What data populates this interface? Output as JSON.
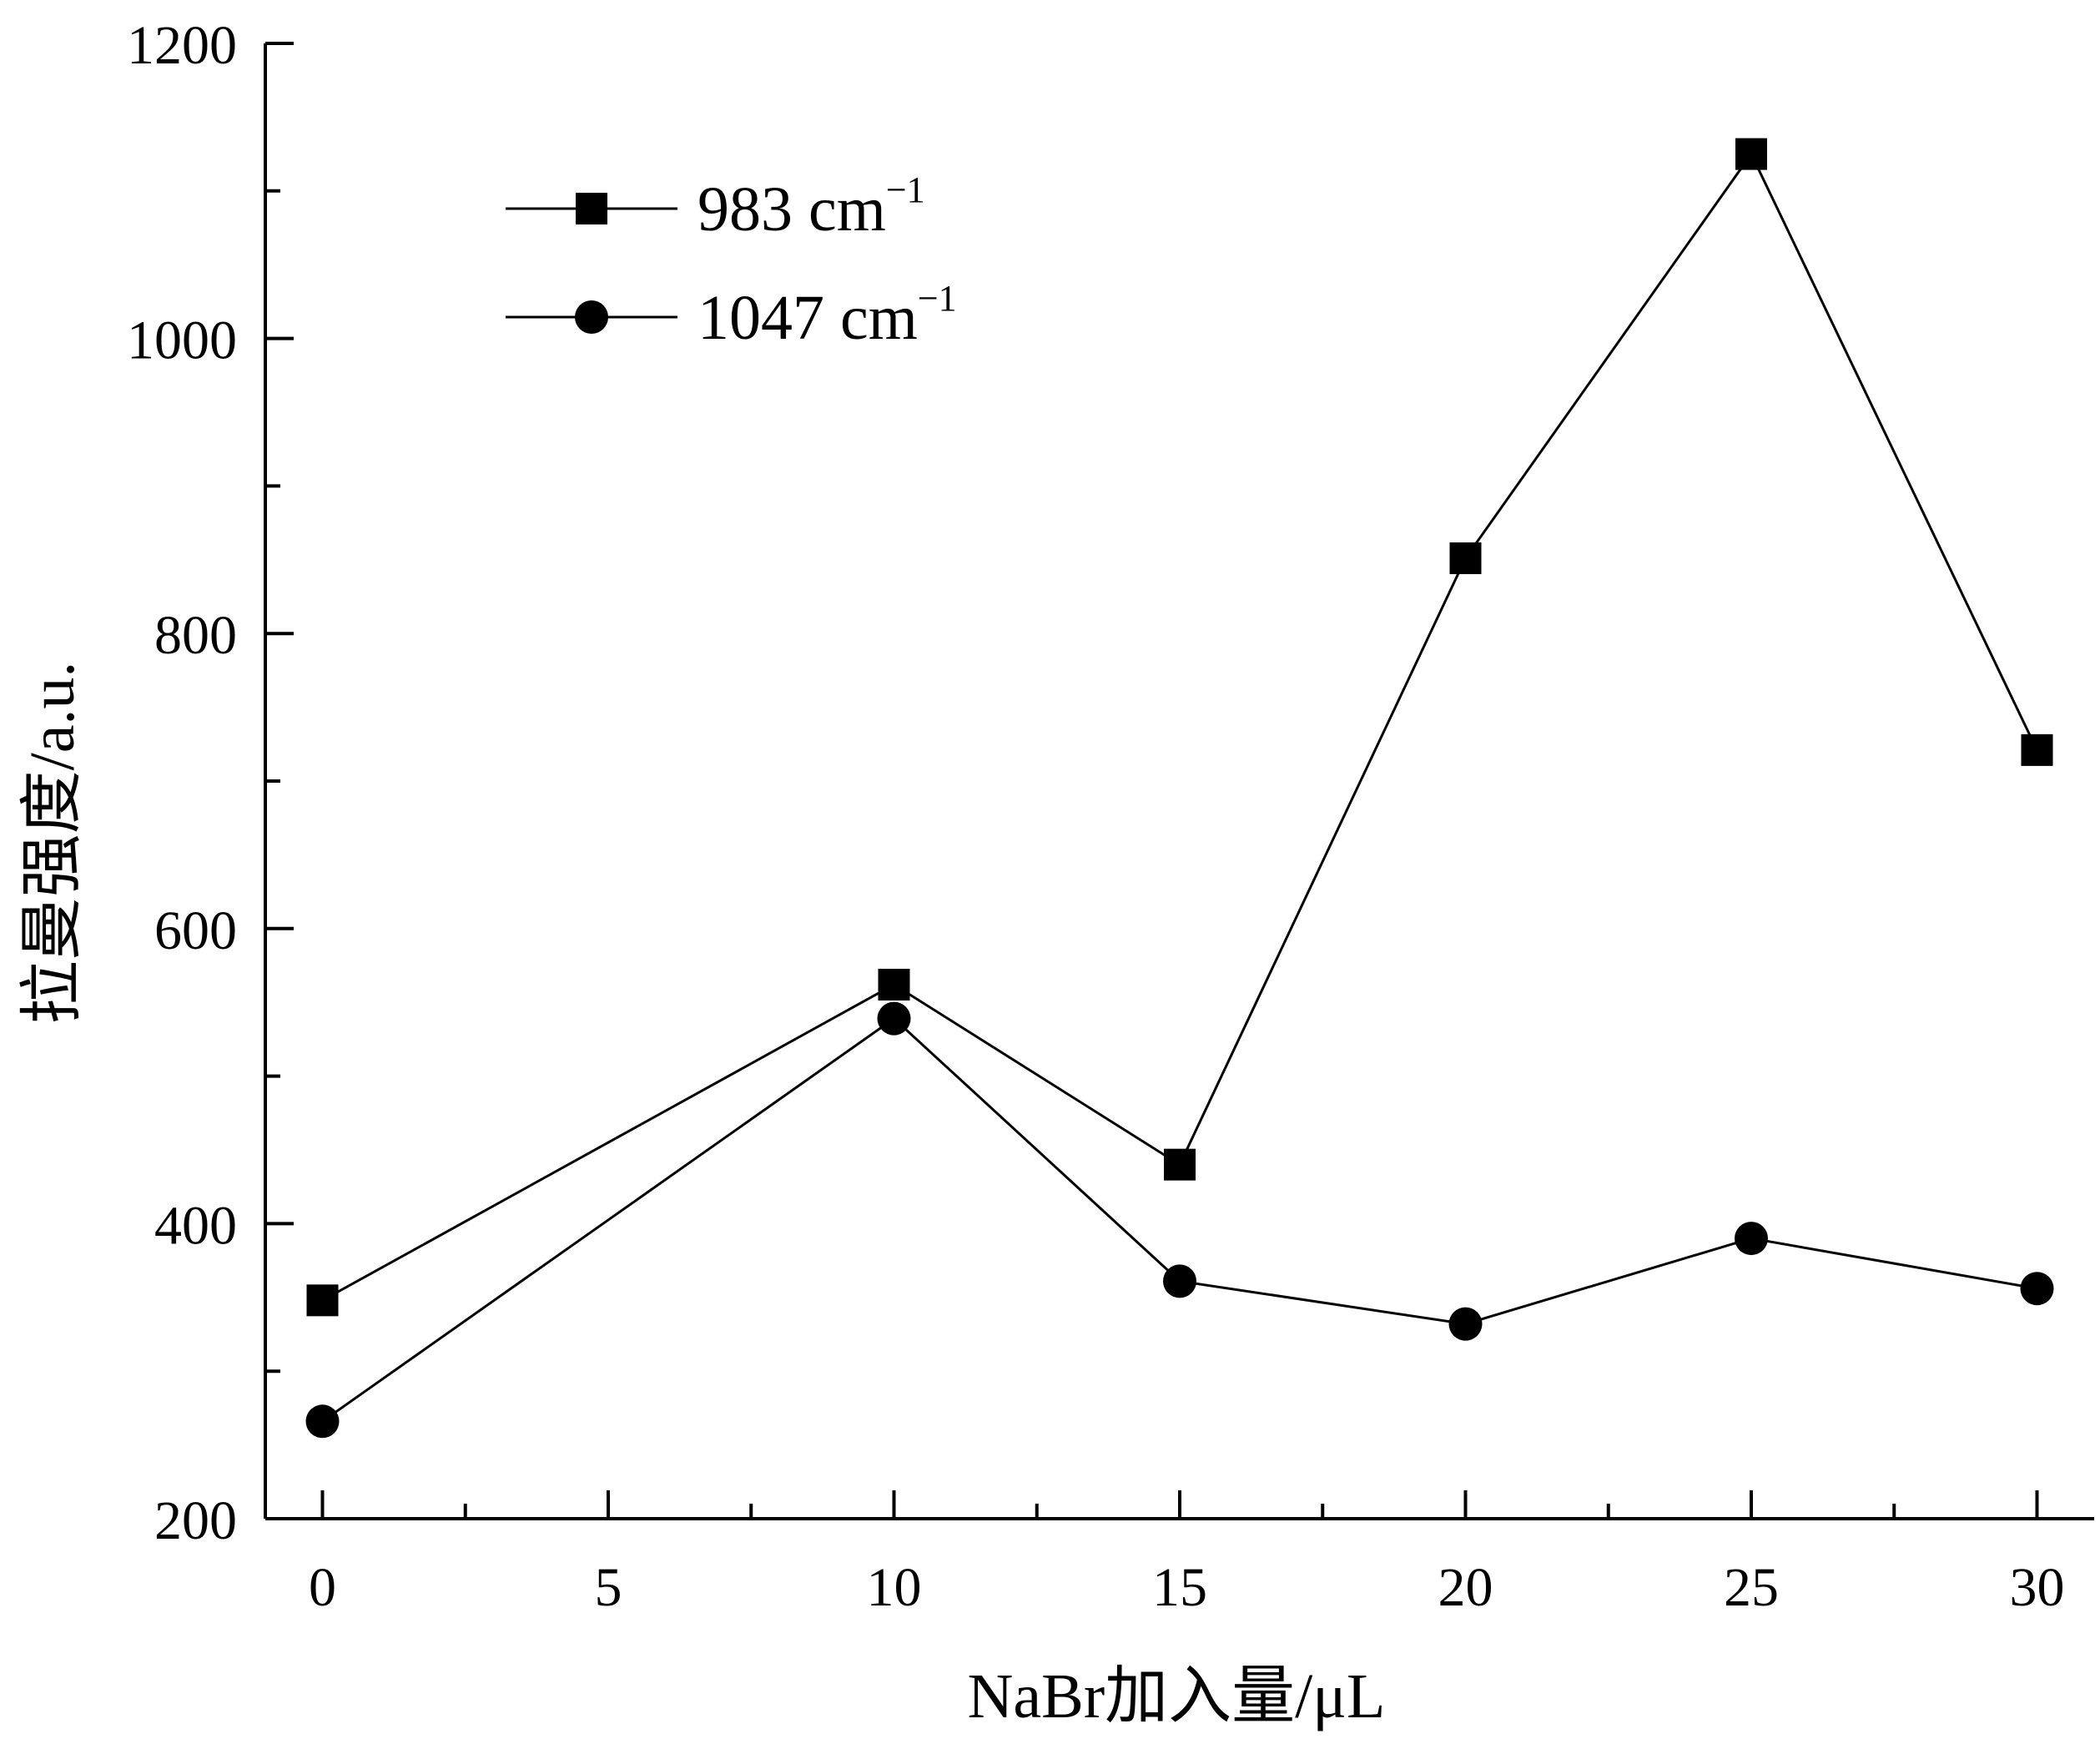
{
  "chart_data": {
    "type": "line",
    "title": "",
    "xlabel": "NaBr加入量/μL",
    "ylabel": "拉曼强度/a.u.",
    "x": [
      0,
      10,
      15,
      20,
      25,
      30
    ],
    "xlim": [
      -1,
      31
    ],
    "ylim": [
      200,
      1200
    ],
    "xticks": [
      "0",
      "5",
      "10",
      "15",
      "20",
      "25",
      "30"
    ],
    "yticks": [
      "200",
      "400",
      "600",
      "800",
      "1000",
      "1200"
    ],
    "grid": false,
    "legend_position": "top-left",
    "series": [
      {
        "name": "983 cm",
        "name_superscript": "−1",
        "marker": "square",
        "color": "#000000",
        "values": [
          348,
          562,
          440,
          851,
          1125,
          721
        ]
      },
      {
        "name": "1047 cm",
        "name_superscript": "−1",
        "marker": "circle",
        "color": "#000000",
        "values": [
          266,
          539,
          361,
          332,
          390,
          356
        ]
      }
    ]
  }
}
